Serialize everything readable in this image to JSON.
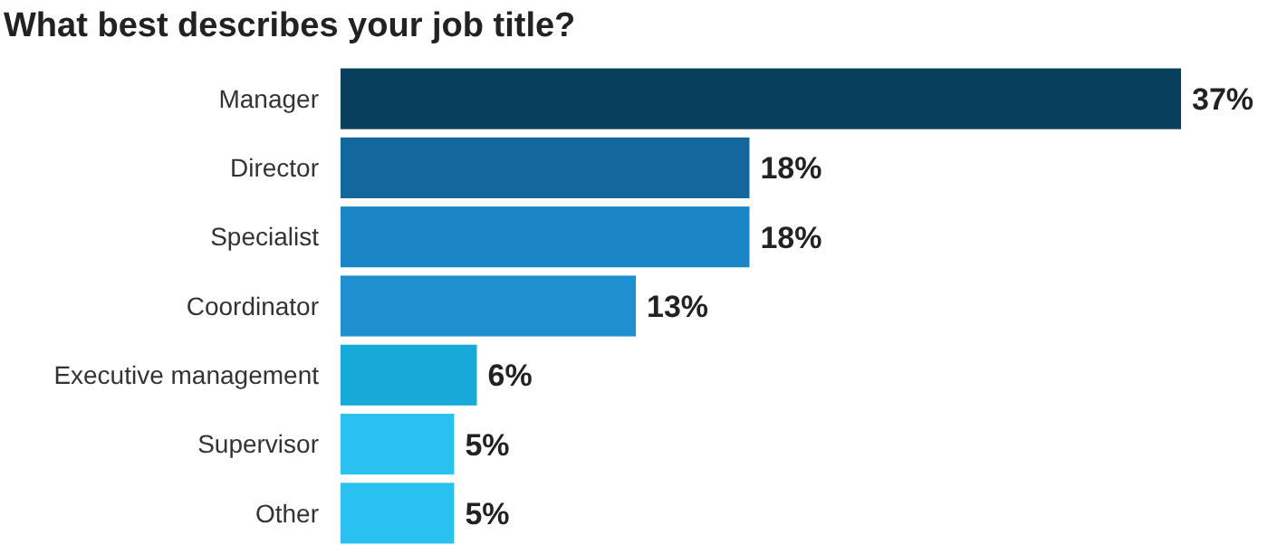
{
  "chart_data": {
    "type": "bar",
    "orientation": "horizontal",
    "title": "What best describes your job title?",
    "categories": [
      "Manager",
      "Director",
      "Specialist",
      "Coordinator",
      "Executive management",
      "Supervisor",
      "Other"
    ],
    "values": [
      37,
      18,
      18,
      13,
      6,
      5,
      5
    ],
    "colors": [
      "#073f5c",
      "#12689c",
      "#1a86c6",
      "#1e90d0",
      "#17a9d8",
      "#29c1f0",
      "#29c1f0"
    ],
    "value_labels": [
      "37%",
      "18%",
      "18%",
      "13%",
      "6%",
      "5%",
      "5%"
    ]
  }
}
